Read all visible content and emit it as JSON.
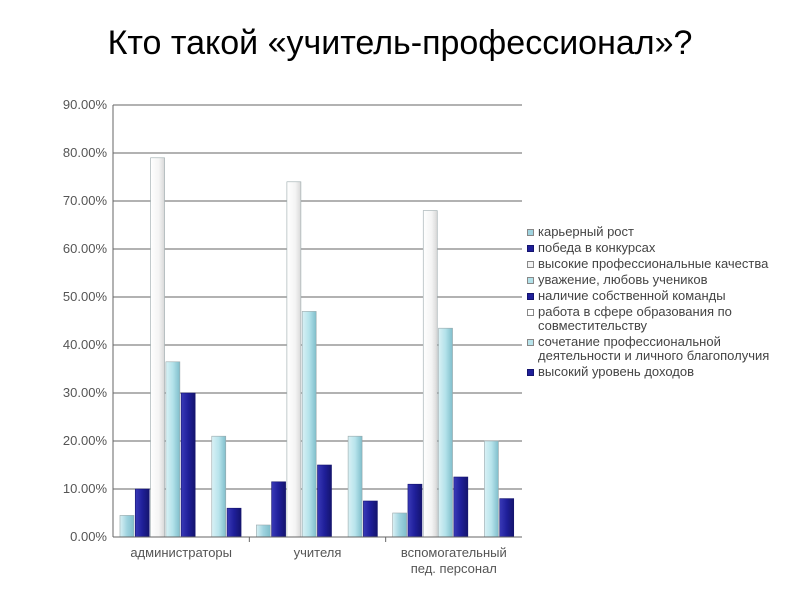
{
  "chart_data": {
    "type": "bar",
    "title": "Кто такой «учитель-профессионал»?",
    "ylim": [
      0,
      90
    ],
    "yticks": [
      "0.00%",
      "10.00%",
      "20.00%",
      "30.00%",
      "40.00%",
      "50.00%",
      "60.00%",
      "70.00%",
      "80.00%",
      "90.00%"
    ],
    "grid": true,
    "legend_position": "right",
    "categories": [
      "администраторы",
      "учителя",
      "вспомогательный пед. персонал"
    ],
    "series": [
      {
        "name": "карьерный рост",
        "color": "#9fd3df",
        "values": [
          4.5,
          2.5,
          5.0
        ]
      },
      {
        "name": "победа в конкурсах",
        "color": "#1f1f9a",
        "values": [
          10.0,
          11.5,
          11.0
        ]
      },
      {
        "name": "высокие профессиональные качества",
        "color": "#f3f3f3",
        "values": [
          79.0,
          74.0,
          68.0
        ]
      },
      {
        "name": "уважение, любовь учеников",
        "color": "#b3e2ea",
        "values": [
          36.5,
          47.0,
          43.5
        ]
      },
      {
        "name": "наличие собственной команды",
        "color": "#1f1f9a",
        "values": [
          30.0,
          15.0,
          12.5
        ]
      },
      {
        "name": "работа в сфере образования по совместительству",
        "color": "#ffffff",
        "values": [
          0,
          0,
          0
        ]
      },
      {
        "name": "сочетание профессиональной деятельности и личного благополучия",
        "color": "#b8e4ec",
        "values": [
          21.0,
          21.0,
          20.0
        ]
      },
      {
        "name": "высокий уровень доходов",
        "color": "#1f1f9a",
        "values": [
          6.0,
          7.5,
          8.0
        ]
      }
    ]
  }
}
